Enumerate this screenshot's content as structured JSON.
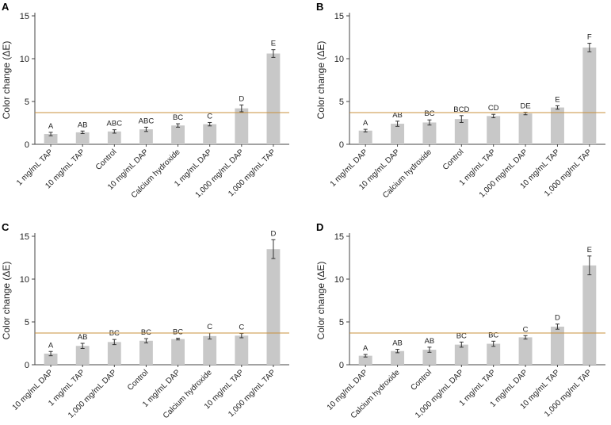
{
  "colors": {
    "bar": "#c8c8c8",
    "axis": "#444444",
    "threshold": "#c8913c",
    "errorbar": "#333333"
  },
  "chart_data": [
    {
      "type": "bar",
      "panel": "A",
      "ylabel": "Color change (ΔE)",
      "ylim": [
        0,
        15
      ],
      "yticks": [
        0,
        5,
        10,
        15
      ],
      "threshold": 3.7,
      "categories": [
        "1 mg/mL TAP",
        "10 mg/mL TAP",
        "Control",
        "10 mg/mL DAP",
        "Calcium hydroxide",
        "1 mg/mL DAP",
        "1,000 mg/mL DAP",
        "1,000 mg/mL TAP"
      ],
      "values": [
        1.2,
        1.4,
        1.5,
        1.75,
        2.2,
        2.35,
        4.2,
        10.6
      ],
      "errors": [
        0.2,
        0.15,
        0.2,
        0.25,
        0.2,
        0.2,
        0.4,
        0.45
      ],
      "labels": [
        "A",
        "AB",
        "ABC",
        "ABC",
        "BC",
        "C",
        "D",
        "E"
      ]
    },
    {
      "type": "bar",
      "panel": "B",
      "ylabel": "Color change (ΔE)",
      "ylim": [
        0,
        15
      ],
      "yticks": [
        0,
        5,
        10,
        15
      ],
      "threshold": 3.7,
      "categories": [
        "1 mg/mL DAP",
        "10 mg/mL DAP",
        "Calcium hydroxide",
        "Control",
        "1 mg/mL TAP",
        "1,000 mg/mL DAP",
        "10 mg/mL TAP",
        "1,000 mg/mL TAP"
      ],
      "values": [
        1.6,
        2.4,
        2.55,
        2.95,
        3.3,
        3.6,
        4.3,
        11.3
      ],
      "errors": [
        0.15,
        0.3,
        0.3,
        0.4,
        0.2,
        0.15,
        0.2,
        0.5
      ],
      "labels": [
        "A",
        "AB",
        "BC",
        "BCD",
        "CD",
        "DE",
        "E",
        "F"
      ]
    },
    {
      "type": "bar",
      "panel": "C",
      "ylabel": "Color change (ΔE)",
      "ylim": [
        0,
        15
      ],
      "yticks": [
        0,
        5,
        10,
        15
      ],
      "threshold": 3.7,
      "categories": [
        "10 mg/mL DAP",
        "1 mg/mL TAP",
        "1,000 mg/mL DAP",
        "Control",
        "1 mg/mL DAP",
        "Calcium hydroxide",
        "10 mg/mL TAP",
        "1,000 mg/mL TAP"
      ],
      "values": [
        1.3,
        2.2,
        2.65,
        2.8,
        3.0,
        3.35,
        3.4,
        13.5
      ],
      "errors": [
        0.25,
        0.3,
        0.3,
        0.25,
        0.1,
        0.35,
        0.25,
        1.1
      ],
      "labels": [
        "A",
        "AB",
        "BC",
        "BC",
        "BC",
        "C",
        "C",
        "D"
      ]
    },
    {
      "type": "bar",
      "panel": "D",
      "ylabel": "Color change (ΔE)",
      "ylim": [
        0,
        15
      ],
      "yticks": [
        0,
        5,
        10,
        15
      ],
      "threshold": 3.7,
      "categories": [
        "10 mg/mL DAP",
        "Calcium hydroxide",
        "Control",
        "1,000 mg/mL DAP",
        "1 mg/mL TAP",
        "1 mg/mL DAP",
        "10 mg/mL TAP",
        "1,000 mg/mL TAP"
      ],
      "values": [
        1.05,
        1.6,
        1.75,
        2.35,
        2.45,
        3.2,
        4.45,
        11.6
      ],
      "errors": [
        0.15,
        0.2,
        0.3,
        0.3,
        0.3,
        0.2,
        0.3,
        1.1
      ],
      "labels": [
        "A",
        "AB",
        "AB",
        "BC",
        "BC",
        "C",
        "D",
        "E"
      ]
    }
  ]
}
